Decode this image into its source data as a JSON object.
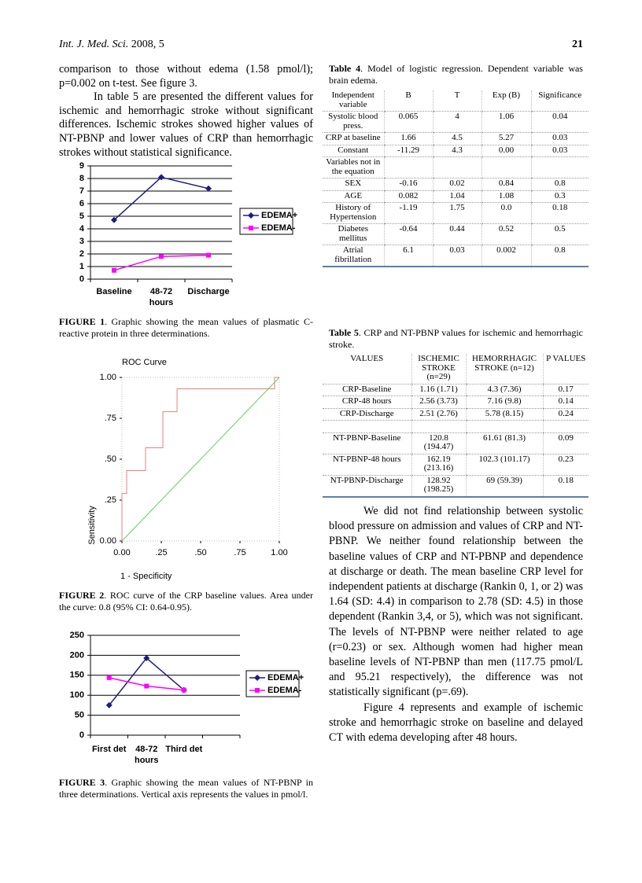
{
  "header": {
    "journal": "Int. J. Med. Sci.",
    "issue": "2008, 5",
    "page": "21"
  },
  "left_text": [
    "comparison to those without edema (1.58 pmol/l); p=0.002 on t-test. See figure 3.",
    "In table 5 are presented the different values for ischemic and hemorrhagic stroke without significant differences. Ischemic strokes showed higher values of NT-PBNP and lower values of CRP than hemorrhagic strokes without statistical significance."
  ],
  "right_text": [
    "We did not find relationship between systolic blood pressure on admission and values of CRP and NT-PBNP. We neither found relationship between the baseline values of CRP and NT-PBNP and dependence at discharge or death. The mean baseline CRP level for independent patients at discharge (Rankin 0, 1, or 2) was 1.64 (SD: 4.4) in comparison to 2.78 (SD: 4.5) in those dependent (Rankin 3,4, or 5), which was not significant. The levels of NT-PBNP were neither related to age (r=0.23) or sex. Although women had higher mean baseline levels of NT-PBNP than men (117.75 pmol/L and 95.21 respectively), the difference was not statistically significant (p=.69).",
    "Figure 4 represents and example of ischemic stroke and hemorrhagic stroke on baseline and delayed CT with edema developing after 48 hours."
  ],
  "figures": [
    {
      "type": "line",
      "categories": [
        "Baseline",
        "48-72 hours",
        "Discharge"
      ],
      "series": [
        {
          "name": "EDEMA+",
          "color": "#1c1c80",
          "marker": "diamond",
          "values": [
            4.7,
            8.1,
            7.2
          ]
        },
        {
          "name": "EDEMA-",
          "color": "#ff00ff",
          "marker": "square",
          "values": [
            0.7,
            1.8,
            1.9
          ]
        }
      ],
      "ylim": [
        0,
        9
      ],
      "yticks": [
        0,
        1,
        2,
        3,
        4,
        5,
        6,
        7,
        8,
        9
      ],
      "grid": true,
      "legend": "right",
      "caption_label": "FIGURE 1",
      "caption_text": ". Graphic showing the mean values of plasmatic C-reactive protein in three determinations."
    },
    {
      "type": "roc",
      "title": "ROC Curve",
      "xlabel": "1 - Specificity",
      "ylabel": "Sensitivity",
      "series": [
        {
          "color": "#e88080",
          "x": [
            0,
            0,
            0.03,
            0.03,
            0.15,
            0.15,
            0.26,
            0.26,
            0.35,
            0.35,
            0.97,
            0.97,
            1
          ],
          "y": [
            0,
            0.29,
            0.29,
            0.43,
            0.43,
            0.57,
            0.57,
            0.79,
            0.79,
            0.93,
            0.93,
            1,
            1
          ]
        },
        {
          "color": "#66cc66",
          "x": [
            0,
            1
          ],
          "y": [
            0,
            1
          ]
        }
      ],
      "xlim": [
        0,
        1
      ],
      "ylim": [
        0,
        1
      ],
      "xticks": [
        {
          "value": 0,
          "label": "0.00"
        },
        {
          "value": 0.25,
          "label": ".25"
        },
        {
          "value": 0.5,
          "label": ".50"
        },
        {
          "value": 0.75,
          "label": ".75"
        },
        {
          "value": 1,
          "label": "1.00"
        }
      ],
      "yticks": [
        {
          "value": 0,
          "label": "0.00"
        },
        {
          "value": 0.25,
          "label": ".25"
        },
        {
          "value": 0.5,
          "label": ".50"
        },
        {
          "value": 0.75,
          "label": ".75"
        },
        {
          "value": 1,
          "label": "1.00"
        }
      ],
      "caption_label": "FIGURE 2",
      "caption_text": ". ROC curve of the CRP baseline values. Area under the curve: 0.8 (95% CI: 0.64-0.95)."
    },
    {
      "type": "line",
      "categories": [
        "First det",
        "48-72 hours",
        "Third det"
      ],
      "series": [
        {
          "name": "EDEMA+",
          "color": "#1c1c80",
          "marker": "diamond",
          "values": [
            75,
            193,
            113
          ]
        },
        {
          "name": "EDEMA-",
          "color": "#ff00ff",
          "marker": "square",
          "values": [
            144,
            123,
            113
          ]
        }
      ],
      "ylim": [
        0,
        250
      ],
      "yticks": [
        0,
        50,
        100,
        150,
        200,
        250
      ],
      "grid": true,
      "legend": "right",
      "caption_label": "FIGURE 3",
      "caption_text": ". Graphic showing the mean values of NT-PBNP in three determinations. Vertical axis represents the values in pmol/l."
    }
  ],
  "tables": [
    {
      "caption_label": "Table 4",
      "caption_text": ". Model of logistic regression. Dependent variable was brain edema.",
      "header": [
        "Independent variable",
        "B",
        "T",
        "Exp (B)",
        "Significance"
      ],
      "row_groups": [
        [
          [
            "Systolic blood press.",
            "0.065",
            "4",
            "1.06",
            "0.04"
          ],
          [
            "CRP at baseline",
            "1.66",
            "4.5",
            "5.27",
            "0.03"
          ],
          [
            "Constant",
            "-11.29",
            "4.3",
            "0.00",
            "0.03"
          ],
          [
            "Variables not in the equation"
          ],
          [
            "SEX",
            "-0.16",
            "0.02",
            "0.84",
            "0.8"
          ],
          [
            "AGE",
            "0.082",
            "1.04",
            "1.08",
            "0.3"
          ],
          [
            "History of Hypertension",
            "-1.19",
            "1.75",
            "0.0",
            "0.18"
          ],
          [
            "Diabetes mellitus",
            "-0.64",
            "0.44",
            "0.52",
            "0.5"
          ],
          [
            "Atrial fibrillation",
            "6.1",
            "0.03",
            "0.002",
            "0.8"
          ]
        ]
      ]
    },
    {
      "caption_label": "Table 5",
      "caption_text": ". CRP and NT-PBNP values for ischemic and hemorrhagic stroke.",
      "header": [
        "VALUES",
        "ISCHEMIC STROKE (n=29)",
        "HEMORRHAGIC STROKE (n=12)",
        "P VALUES"
      ],
      "row_groups": [
        [
          [
            "CRP-Baseline",
            "1.16 (1.71)",
            "4.3 (7.36)",
            "0.17"
          ],
          [
            "CRP-48 hours",
            "2.56 (3.73)",
            "7.16 (9.8)",
            "0.14"
          ],
          [
            "CRP-Discharge",
            "2.51 (2.76)",
            "5.78 (8.15)",
            "0.24"
          ]
        ],
        [
          [
            "NT-PBNP-Baseline",
            "120.8 (194.47)",
            "61.61 (81.3)",
            "0.09"
          ],
          [
            "NT-PBNP-48 hours",
            "162.19 (213.16)",
            "102.3 (101.17)",
            "0.23"
          ],
          [
            "NT-PBNP-Discharge",
            "128.92 (198.25)",
            "69 (59.39)",
            "0.18"
          ]
        ]
      ]
    }
  ]
}
